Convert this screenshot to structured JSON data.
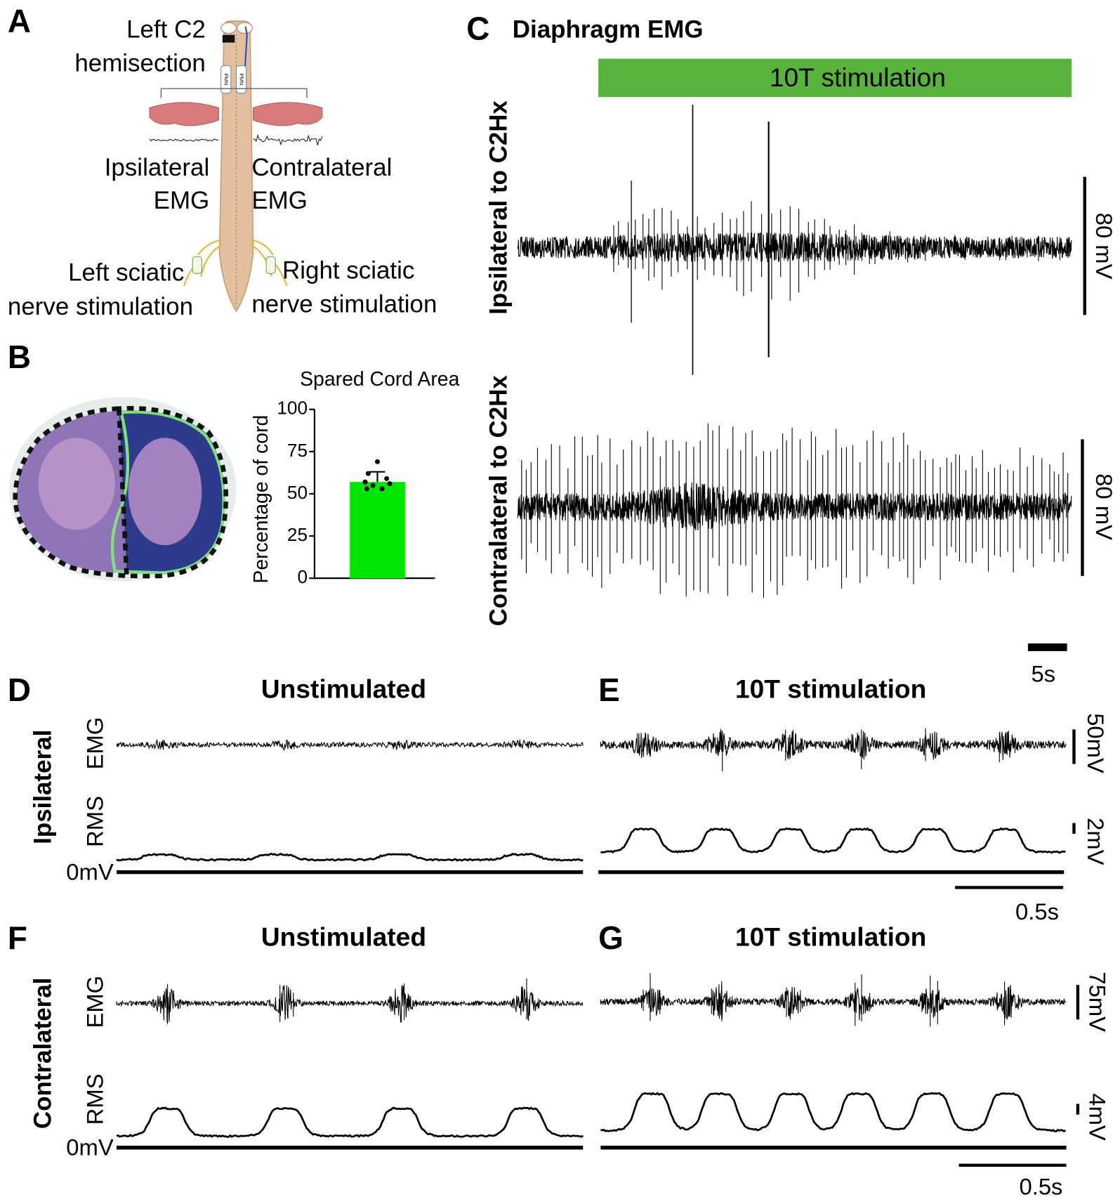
{
  "panel_labels": [
    "A",
    "B",
    "C",
    "D",
    "E",
    "F",
    "G"
  ],
  "panel_a": {
    "hemisection_label": [
      "Left C2",
      "hemisection"
    ],
    "pmn_labels": [
      "PMN",
      "PMN"
    ],
    "ipsilateral_label": [
      "Ipsilateral",
      "EMG"
    ],
    "contralateral_label": [
      "Contralateral",
      "EMG"
    ],
    "left_stim_label": [
      "Left sciatic",
      "nerve  stimulation"
    ],
    "right_stim_label": [
      "Right sciatic",
      "nerve stimulation"
    ]
  },
  "chart_data": {
    "type": "bar",
    "title": "Spared Cord Area",
    "y_label": "Percentage of cord",
    "categories": [
      null
    ],
    "values": [
      57
    ],
    "errors": [
      6
    ],
    "points": [
      69,
      62,
      59,
      57,
      56,
      55,
      53,
      53
    ],
    "color": "#00e600",
    "ylim": [
      0,
      100
    ],
    "yticks": [
      0,
      25,
      50,
      75,
      100
    ]
  },
  "panel_c": {
    "title": "Diaphragm EMG",
    "stimulation_label": "10T stimulation",
    "trace_labels": [
      "Ipsilateral to C2Hx",
      "Contralateral to C2Hx"
    ],
    "scale_labels": [
      "80 mV",
      "80 mV"
    ],
    "time_scale_label": "5s"
  },
  "panels_dg": {
    "titles": [
      "Unstimulated",
      "10T stimulation",
      "Unstimulated",
      "10T stimulation"
    ],
    "side_labels": [
      "Ipsilateral",
      "Contralateral"
    ],
    "row_labels": [
      "EMG",
      "RMS"
    ],
    "zero_label": "0mV",
    "amplitude_labels": [
      "50mV",
      "2mV",
      "75mV",
      "4mV"
    ],
    "time_labels": [
      "0.5s",
      "0.5s"
    ]
  }
}
